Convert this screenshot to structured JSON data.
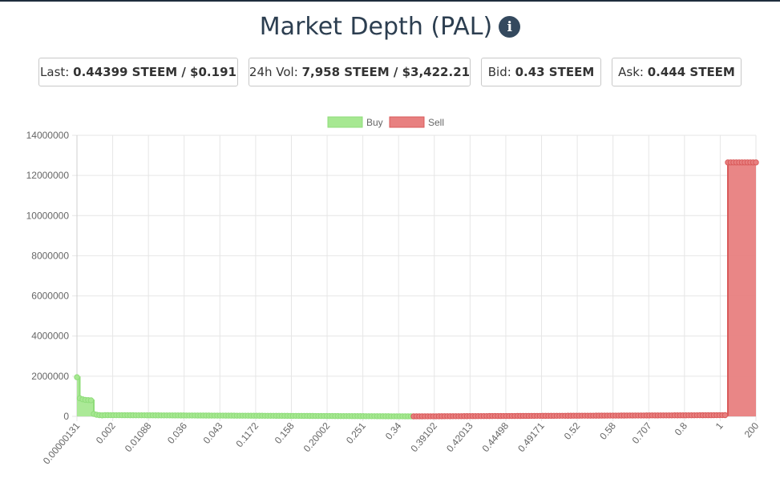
{
  "header": {
    "title": "Market Depth (PAL)"
  },
  "stats": {
    "last": {
      "label": "Last:",
      "value": "0.44399 STEEM / $0.191"
    },
    "volume": {
      "label": "24h Vol:",
      "value": "7,958 STEEM / $3,422.21"
    },
    "bid": {
      "label": "Bid:",
      "value": "0.43 STEEM"
    },
    "ask": {
      "label": "Ask:",
      "value": "0.444 STEEM"
    }
  },
  "icons": {
    "info": "info-icon"
  },
  "colors": {
    "buy_fill": "#a6e891",
    "buy_line": "#8fdc7a",
    "sell_fill": "#e88080",
    "sell_line": "#d95a5a",
    "title": "#2c3e50"
  },
  "chart_data": {
    "type": "area",
    "legend": {
      "position": "top",
      "items": [
        "Buy",
        "Sell"
      ]
    },
    "grid": true,
    "ylim": [
      0,
      14000000
    ],
    "yticks": [
      "14000000",
      "12000000",
      "10000000",
      "8000000",
      "6000000",
      "4000000",
      "2000000",
      "0"
    ],
    "xtick_labels": [
      "0.00000131",
      "0.002",
      "0.01088",
      "0.036",
      "0.043",
      "0.1172",
      "0.158",
      "0.20002",
      "0.251",
      "0.34",
      "0.39102",
      "0.42013",
      "0.44498",
      "0.49171",
      "0.52",
      "0.58",
      "0.707",
      "0.8",
      "1",
      "200"
    ],
    "series": [
      {
        "name": "Buy",
        "points": 120,
        "values_approx": [
          1950000,
          900000,
          850000,
          820000,
          810000,
          800000,
          790000,
          120000,
          80000,
          60000,
          50000,
          40000,
          35000,
          30000,
          25000,
          20000,
          15000,
          10000,
          5000,
          0
        ]
      },
      {
        "name": "Sell",
        "points": 123,
        "values_approx": [
          0,
          5000,
          10000,
          15000,
          20000,
          25000,
          30000,
          35000,
          40000,
          45000,
          50000,
          55000,
          60000,
          12650000,
          12650000
        ]
      }
    ]
  }
}
